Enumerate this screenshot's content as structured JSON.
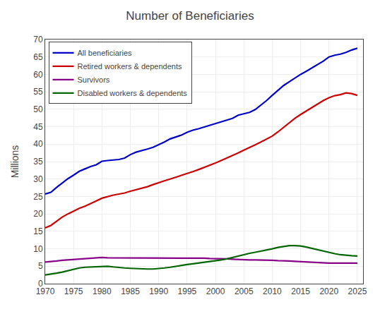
{
  "chart_data": {
    "type": "line",
    "title": "Number of Beneficiaries",
    "ylabel": "Millions",
    "x": [
      1970,
      1971,
      1972,
      1973,
      1974,
      1975,
      1976,
      1977,
      1978,
      1979,
      1980,
      1981,
      1982,
      1983,
      1984,
      1985,
      1986,
      1987,
      1988,
      1989,
      1990,
      1991,
      1992,
      1993,
      1994,
      1995,
      1996,
      1997,
      1998,
      1999,
      2000,
      2001,
      2002,
      2003,
      2004,
      2005,
      2006,
      2007,
      2008,
      2009,
      2010,
      2011,
      2012,
      2013,
      2014,
      2015,
      2016,
      2017,
      2018,
      2019,
      2020,
      2021,
      2022,
      2023,
      2024,
      2025
    ],
    "series": [
      {
        "name": "All beneficiaries",
        "color": "#0000cc",
        "values": [
          25.7,
          26.2,
          27.6,
          28.9,
          30.1,
          31.1,
          32.2,
          32.9,
          33.6,
          34.1,
          35.1,
          35.3,
          35.4,
          35.6,
          36.0,
          37.0,
          37.7,
          38.1,
          38.6,
          39.1,
          39.8,
          40.6,
          41.5,
          42.0,
          42.6,
          43.4,
          44.0,
          44.4,
          44.9,
          45.5,
          45.9,
          46.4,
          46.9,
          47.4,
          48.3,
          48.7,
          49.1,
          49.9,
          51.2,
          52.5,
          54.0,
          55.4,
          56.8,
          57.9,
          59.0,
          60.0,
          60.9,
          61.9,
          62.9,
          63.8,
          65.0,
          65.5,
          65.8,
          66.3,
          67.0,
          67.5
        ]
      },
      {
        "name": "Retired workers & dependents",
        "color": "#cc0000",
        "values": [
          16.0,
          16.7,
          17.9,
          19.1,
          20.0,
          20.8,
          21.6,
          22.2,
          22.9,
          23.7,
          24.5,
          25.0,
          25.4,
          25.7,
          26.0,
          26.5,
          26.9,
          27.3,
          27.8,
          28.4,
          29.0,
          29.5,
          30.0,
          30.5,
          31.0,
          31.6,
          32.1,
          32.7,
          33.3,
          33.9,
          34.6,
          35.3,
          36.0,
          36.8,
          37.5,
          38.3,
          39.0,
          39.8,
          40.6,
          41.4,
          42.3,
          43.5,
          44.8,
          46.1,
          47.4,
          48.5,
          49.5,
          50.4,
          51.4,
          52.5,
          53.3,
          53.9,
          54.2,
          54.7,
          54.5,
          54.0
        ]
      },
      {
        "name": "Survivors",
        "color": "#880088",
        "values": [
          6.2,
          6.3,
          6.5,
          6.7,
          6.8,
          7.0,
          7.1,
          7.2,
          7.3,
          7.4,
          7.5,
          7.4,
          7.4,
          7.4,
          7.3,
          7.3,
          7.4,
          7.4,
          7.4,
          7.4,
          7.4,
          7.4,
          7.4,
          7.4,
          7.4,
          7.4,
          7.4,
          7.3,
          7.3,
          7.2,
          7.2,
          7.1,
          7.1,
          7.0,
          6.9,
          6.9,
          6.8,
          6.8,
          6.8,
          6.7,
          6.7,
          6.6,
          6.6,
          6.5,
          6.4,
          6.3,
          6.2,
          6.1,
          6.0,
          5.9,
          5.9,
          5.9,
          5.9,
          5.9,
          5.9,
          5.9
        ]
      },
      {
        "name": "Disabled workers & dependents",
        "color": "#006600",
        "values": [
          2.5,
          2.7,
          3.0,
          3.3,
          3.7,
          4.1,
          4.5,
          4.7,
          4.8,
          4.9,
          5.0,
          5.0,
          4.8,
          4.6,
          4.5,
          4.4,
          4.3,
          4.2,
          4.2,
          4.2,
          4.3,
          4.5,
          4.7,
          5.0,
          5.2,
          5.5,
          5.7,
          5.9,
          6.1,
          6.4,
          6.6,
          6.8,
          7.1,
          7.5,
          8.0,
          8.4,
          8.7,
          9.0,
          9.3,
          9.6,
          10.0,
          10.4,
          10.7,
          10.9,
          10.9,
          10.8,
          10.5,
          10.1,
          9.7,
          9.3,
          9.0,
          8.6,
          8.3,
          8.1,
          8.0,
          7.9
        ]
      }
    ],
    "xlim": [
      1970,
      2026
    ],
    "ylim": [
      0,
      70
    ],
    "xticks": [
      1970,
      1975,
      1980,
      1985,
      1990,
      1995,
      2000,
      2005,
      2010,
      2015,
      2020,
      2025
    ],
    "yticks": [
      0,
      5,
      10,
      15,
      20,
      25,
      30,
      35,
      40,
      45,
      50,
      55,
      60,
      65,
      70
    ],
    "grid": true,
    "legend": "upper left"
  }
}
